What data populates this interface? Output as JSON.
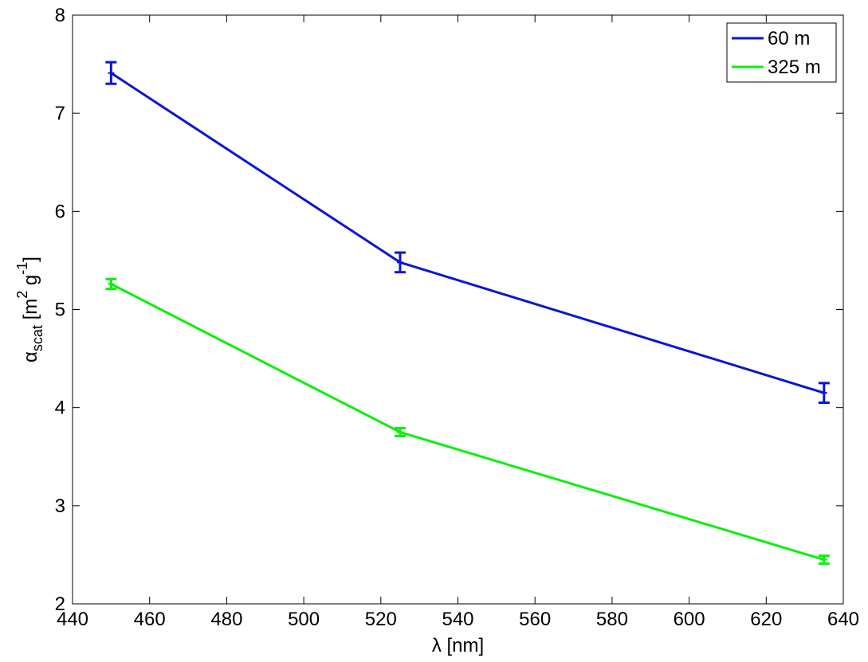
{
  "chart_data": {
    "type": "line",
    "xlabel": "λ [nm]",
    "ylabel": "α_scat [m^2 g^-1]",
    "ylabel_parts": {
      "symbol": "α",
      "subscript": "scat",
      "units_open": " [m",
      "units_sup1": "2",
      "units_mid": " g",
      "units_sup2": "-1",
      "units_close": "]"
    },
    "xlim": [
      440,
      640
    ],
    "ylim": [
      2,
      8
    ],
    "xticks": [
      440,
      460,
      480,
      500,
      520,
      540,
      560,
      580,
      600,
      620,
      640
    ],
    "yticks": [
      2,
      3,
      4,
      5,
      6,
      7,
      8
    ],
    "grid": false,
    "legend_position": "top-right",
    "series": [
      {
        "name": "60 m",
        "color": "#0a14d6",
        "x": [
          450,
          525,
          635
        ],
        "y": [
          7.41,
          5.48,
          4.15
        ],
        "err": [
          0.11,
          0.1,
          0.1
        ]
      },
      {
        "name": "325 m",
        "color": "#0af00a",
        "x": [
          450,
          525,
          635
        ],
        "y": [
          5.26,
          3.75,
          2.45
        ],
        "err": [
          0.05,
          0.04,
          0.04
        ]
      }
    ]
  }
}
